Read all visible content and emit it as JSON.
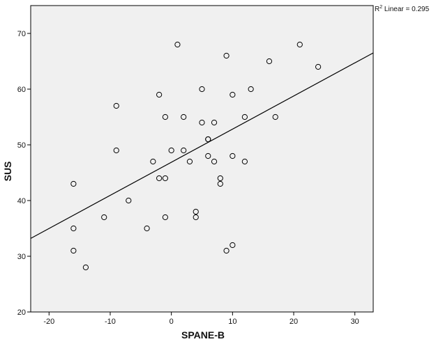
{
  "chart_data": {
    "type": "scatter",
    "title": "",
    "xlabel": "SPANE-B",
    "ylabel": "SUS",
    "xlim": [
      -23,
      33
    ],
    "ylim": [
      20,
      75
    ],
    "xticks": [
      -20,
      -10,
      0,
      10,
      20,
      30
    ],
    "yticks": [
      20,
      30,
      40,
      50,
      60,
      70
    ],
    "grid": false,
    "legend": "none",
    "annotation": {
      "r2_label": "R",
      "r2_sup": "2",
      "r2_rest": " Linear = 0.295"
    },
    "fit_line": {
      "type": "linear",
      "x": [
        -23,
        33
      ],
      "y": [
        33.2,
        66.5
      ]
    },
    "series": [
      {
        "points": [
          [
            1,
            68
          ],
          [
            21,
            68
          ],
          [
            9,
            66
          ],
          [
            16,
            65
          ],
          [
            24,
            64
          ],
          [
            5,
            60
          ],
          [
            13,
            60
          ],
          [
            -2,
            59
          ],
          [
            10,
            59
          ],
          [
            -9,
            57
          ],
          [
            -1,
            55
          ],
          [
            2,
            55
          ],
          [
            12,
            55
          ],
          [
            17,
            55
          ],
          [
            5,
            54
          ],
          [
            7,
            54
          ],
          [
            6,
            51
          ],
          [
            6,
            51
          ],
          [
            -9,
            49
          ],
          [
            0,
            49
          ],
          [
            2,
            49
          ],
          [
            6,
            48
          ],
          [
            10,
            48
          ],
          [
            -3,
            47
          ],
          [
            3,
            47
          ],
          [
            7,
            47
          ],
          [
            12,
            47
          ],
          [
            -2,
            44
          ],
          [
            -1,
            44
          ],
          [
            8,
            44
          ],
          [
            -16,
            43
          ],
          [
            8,
            43
          ],
          [
            -7,
            40
          ],
          [
            4,
            38
          ],
          [
            -11,
            37
          ],
          [
            -1,
            37
          ],
          [
            4,
            37
          ],
          [
            -16,
            35
          ],
          [
            -4,
            35
          ],
          [
            10,
            32
          ],
          [
            -16,
            31
          ],
          [
            9,
            31
          ],
          [
            -14,
            28
          ]
        ]
      }
    ],
    "colors": {
      "plot_background": "#f0f0f0",
      "frame": "#000000",
      "marker_stroke": "#000000",
      "fit_line": "#000000"
    }
  }
}
